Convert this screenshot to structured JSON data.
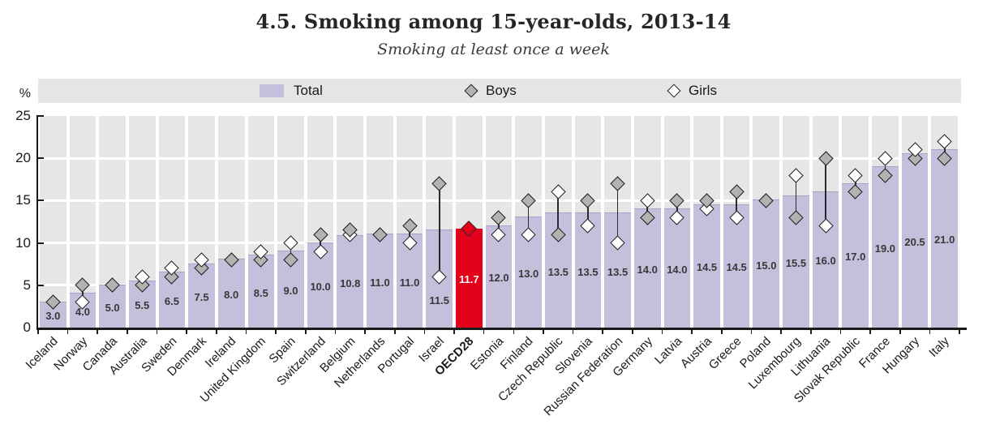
{
  "chart_data": {
    "type": "bar",
    "title": "4.5. Smoking among 15-year-olds, 2013-14",
    "subtitle": "Smoking at least once a week",
    "xlabel": "",
    "ylabel": "%",
    "ylim": [
      0,
      25
    ],
    "y_ticks": [
      25,
      20,
      15,
      10,
      5,
      0
    ],
    "grid": "horizontal white gridlines every 5 on gray column panels",
    "legend": [
      "Total",
      "Boys",
      "Girls"
    ],
    "legend_position": "top strip",
    "categories": [
      "Iceland",
      "Norway",
      "Canada",
      "Australia",
      "Sweden",
      "Denmark",
      "Ireland",
      "United Kingdom",
      "Spain",
      "Switzerland",
      "Belgium",
      "Netherlands",
      "Portugal",
      "Israel",
      "OECD28",
      "Estonia",
      "Finland",
      "Czech Republic",
      "Slovenia",
      "Russian Federation",
      "Germany",
      "Latvia",
      "Austria",
      "Greece",
      "Poland",
      "Luxembourg",
      "Lithuania",
      "Slovak Republic",
      "France",
      "Hungary",
      "Italy"
    ],
    "series": [
      {
        "name": "Total",
        "type": "bar",
        "values": [
          3.0,
          4.0,
          5.0,
          5.5,
          6.5,
          7.5,
          8.0,
          8.5,
          9.0,
          10.0,
          10.8,
          11.0,
          11.0,
          11.5,
          11.7,
          12.0,
          13.0,
          13.5,
          13.5,
          13.5,
          14.0,
          14.0,
          14.5,
          14.5,
          15.0,
          15.5,
          16.0,
          17.0,
          19.0,
          20.5,
          21.0
        ]
      },
      {
        "name": "Boys",
        "type": "scatter-diamond-gray",
        "values": [
          3,
          5,
          5,
          5,
          6,
          7,
          8,
          8,
          8,
          11,
          11.5,
          11,
          12,
          17,
          null,
          13,
          15,
          11,
          15,
          17,
          13,
          15,
          15,
          16,
          15,
          13,
          20,
          16,
          18,
          20,
          20
        ]
      },
      {
        "name": "Girls",
        "type": "scatter-diamond-white",
        "values": [
          3,
          3,
          5,
          6,
          7,
          8,
          8,
          9,
          10,
          9,
          11,
          11,
          10,
          6,
          null,
          11,
          11,
          16,
          12,
          10,
          15,
          13,
          14,
          13,
          15,
          18,
          12,
          18,
          20,
          21,
          22
        ]
      }
    ],
    "bar_labels": [
      "3.0",
      "4.0",
      "5.0",
      "5.5",
      "6.5",
      "7.5",
      "8.0",
      "8.5",
      "9.0",
      "10.0",
      "10.8",
      "11.0",
      "11.0",
      "11.5",
      "11.7",
      "12.0",
      "13.0",
      "13.5",
      "13.5",
      "13.5",
      "14.0",
      "14.0",
      "14.5",
      "14.5",
      "15.0",
      "15.5",
      "16.0",
      "17.0",
      "19.0",
      "20.5",
      "21.0"
    ],
    "highlight": {
      "category": "OECD28",
      "index": 14,
      "marker_value": 11.7,
      "bar_color": "#e2001a"
    },
    "colors": {
      "bar_total": "#c6bfdc",
      "bar_highlight": "#e2001a",
      "boys_marker_fill": "#b3b2b3",
      "girls_marker_fill": "#ffffff",
      "marker_stroke": "#1f1f1f",
      "column_panel": "#e7e6e6",
      "legend_strip": "#e6e5e6",
      "axis": "#1a1a1a"
    }
  }
}
